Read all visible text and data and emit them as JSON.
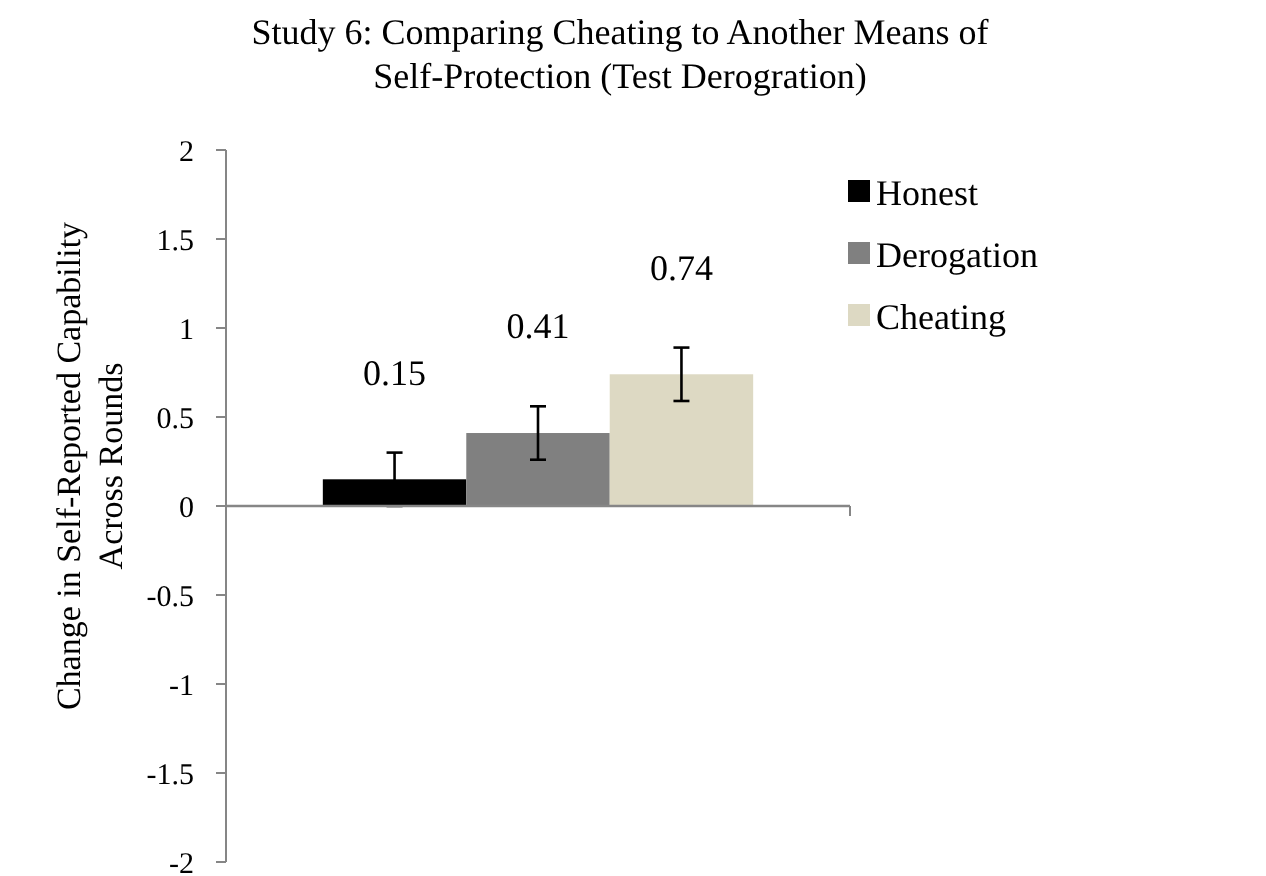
{
  "chart_data": {
    "type": "bar",
    "title": "Study 6: Comparing Cheating to Another Means of Self-Protection (Test Derogration)",
    "ylabel": "Change in Self-Reported Capability Across Rounds",
    "categories": [
      null
    ],
    "series": [
      {
        "name": "Honest",
        "color": "#000000",
        "values": [
          0.15
        ],
        "errors": [
          0.15
        ]
      },
      {
        "name": "Derogation",
        "color": "#808080",
        "values": [
          0.41
        ],
        "errors": [
          0.15
        ]
      },
      {
        "name": "Cheating",
        "color": "#ddd9c3",
        "values": [
          0.74
        ],
        "errors": [
          0.15
        ]
      }
    ],
    "ylim": [
      -2,
      2
    ],
    "yticks": [
      -2,
      -1.5,
      -1,
      -0.5,
      0,
      0.5,
      1,
      1.5,
      2
    ],
    "data_labels": true,
    "legend": "right"
  }
}
